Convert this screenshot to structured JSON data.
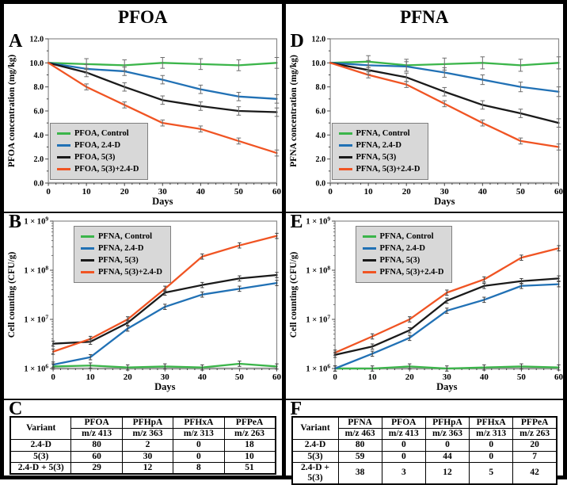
{
  "figure": {
    "left_title": "PFOA",
    "right_title": "PFNA"
  },
  "colors": {
    "green": "#3bb54a",
    "blue": "#2171b5",
    "black": "#1a1a1a",
    "orange": "#f05423",
    "table_blue": "#0070c0",
    "table_red": "#ff0000",
    "legend_bg": "#d8d8d8"
  },
  "chart_data": [
    {
      "id": "A",
      "panel_label": "A",
      "type": "line",
      "scale": "linear",
      "xlabel": "Days",
      "ylabel": "PFOA concentration (mg/kg)",
      "x": [
        0,
        10,
        20,
        30,
        40,
        50,
        60
      ],
      "xticks": [
        "0",
        "10",
        "20",
        "30",
        "40",
        "50",
        "60"
      ],
      "ylim": [
        0,
        12
      ],
      "ytick_labels": [
        "0.0",
        "2.0",
        "4.0",
        "6.0",
        "8.0",
        "10.0",
        "12.0"
      ],
      "legend_position": "bottom-left",
      "series": [
        {
          "name": "PFOA, Control",
          "color_key": "green",
          "values": [
            10.0,
            9.9,
            9.8,
            10.0,
            9.9,
            9.8,
            10.0
          ],
          "err": 0.45
        },
        {
          "name": "PFOA, 2.4-D",
          "color_key": "blue",
          "values": [
            10.0,
            9.5,
            9.3,
            8.6,
            7.8,
            7.2,
            7.0
          ],
          "err": 0.35
        },
        {
          "name": "PFOA, 5(3)",
          "color_key": "black",
          "values": [
            10.0,
            9.2,
            8.0,
            6.9,
            6.4,
            6.0,
            5.9
          ],
          "err": 0.35
        },
        {
          "name": "PFOA, 5(3)+2.4-D",
          "color_key": "orange",
          "values": [
            10.0,
            8.0,
            6.5,
            5.0,
            4.5,
            3.5,
            2.5
          ],
          "err": 0.25
        }
      ]
    },
    {
      "id": "B",
      "panel_label": "B",
      "type": "line",
      "scale": "log",
      "xlabel": "Days",
      "ylabel": "Cell counting (CFU/g)",
      "x": [
        0,
        10,
        20,
        30,
        40,
        50,
        60
      ],
      "xticks": [
        "0",
        "10",
        "20",
        "30",
        "40",
        "50",
        "60"
      ],
      "ylim": [
        1000000,
        1000000000
      ],
      "ytick_labels": [
        "1 × 10⁶",
        "1 × 10⁷",
        "1 × 10⁸",
        "1 × 10⁹"
      ],
      "legend_position": "top-left",
      "series": [
        {
          "name": "PFNA, Control",
          "color_key": "green",
          "values": [
            1100000.0,
            1150000.0,
            1050000.0,
            1100000.0,
            1050000.0,
            1250000.0,
            1100000.0
          ]
        },
        {
          "name": "PFNA, 2.4-D",
          "color_key": "blue",
          "values": [
            1200000.0,
            1700000.0,
            6500000.0,
            18000000.0,
            32000000.0,
            42000000.0,
            55000000.0
          ]
        },
        {
          "name": "PFNA, 5(3)",
          "color_key": "black",
          "values": [
            3200000.0,
            3500000.0,
            8500000.0,
            35000000.0,
            50000000.0,
            68000000.0,
            80000000.0
          ]
        },
        {
          "name": "PFNA, 5(3)+2.4-D",
          "color_key": "orange",
          "values": [
            2200000.0,
            4000000.0,
            10000000.0,
            42000000.0,
            190000000.0,
            320000000.0,
            500000000.0
          ]
        }
      ]
    },
    {
      "id": "C",
      "panel_label": "C",
      "type": "table",
      "variant_header": "Variant",
      "columns": [
        {
          "name": "PFOA",
          "mz": "m/z 413"
        },
        {
          "name": "PFHpA",
          "mz": "m/z 363"
        },
        {
          "name": "PFHxA",
          "mz": "m/z 313"
        },
        {
          "name": "PFPeA",
          "mz": "m/z 263"
        }
      ],
      "rows": [
        {
          "variant": "2.4-D",
          "color_key": "table_blue",
          "values": [
            "80",
            "2",
            "0",
            "18"
          ]
        },
        {
          "variant": "5(3)",
          "color_key": "black",
          "values": [
            "60",
            "30",
            "0",
            "10"
          ]
        },
        {
          "variant": "2.4-D + 5(3)",
          "color_key": "table_red",
          "values": [
            "29",
            "12",
            "8",
            "51"
          ]
        }
      ]
    },
    {
      "id": "D",
      "panel_label": "D",
      "type": "line",
      "scale": "linear",
      "xlabel": "Days",
      "ylabel": "PFNA concentration (mg/kg)",
      "x": [
        0,
        10,
        20,
        30,
        40,
        50,
        60
      ],
      "xticks": [
        "0",
        "10",
        "20",
        "30",
        "40",
        "50",
        "60"
      ],
      "ylim": [
        0,
        12
      ],
      "ytick_labels": [
        "0.0",
        "2.0",
        "4.0",
        "6.0",
        "8.0",
        "10.0",
        "12.0"
      ],
      "legend_position": "bottom-left",
      "series": [
        {
          "name": "PFNA, Control",
          "color_key": "green",
          "values": [
            10.0,
            10.1,
            9.8,
            9.9,
            10.0,
            9.8,
            10.0
          ],
          "err": 0.5
        },
        {
          "name": "PFNA, 2.4-D",
          "color_key": "blue",
          "values": [
            10.0,
            9.8,
            9.7,
            9.2,
            8.6,
            8.0,
            7.6
          ],
          "err": 0.4
        },
        {
          "name": "PFNA, 5(3)",
          "color_key": "black",
          "values": [
            10.0,
            9.4,
            8.8,
            7.6,
            6.5,
            5.8,
            5.0
          ],
          "err": 0.35
        },
        {
          "name": "PFNA, 5(3)+2.4-D",
          "color_key": "orange",
          "values": [
            10.0,
            9.0,
            8.2,
            6.6,
            5.0,
            3.5,
            3.0
          ],
          "err": 0.25
        }
      ]
    },
    {
      "id": "E",
      "panel_label": "E",
      "type": "line",
      "scale": "log",
      "xlabel": "Days",
      "ylabel": "Cell counting (CFU/g)",
      "x": [
        0,
        10,
        20,
        30,
        40,
        50,
        60
      ],
      "xticks": [
        "0",
        "10",
        "20",
        "30",
        "40",
        "50",
        "60"
      ],
      "ylim": [
        1000000,
        1000000000
      ],
      "ytick_labels": [
        "1 × 10⁶",
        "1 × 10⁷",
        "1 × 10⁸",
        "1 × 10⁹"
      ],
      "legend_position": "top-left",
      "series": [
        {
          "name": "PFNA, Control",
          "color_key": "green",
          "values": [
            1000000.0,
            1000000.0,
            1100000.0,
            1000000.0,
            1050000.0,
            1100000.0,
            1050000.0
          ]
        },
        {
          "name": "PFNA, 2.4-D",
          "color_key": "blue",
          "values": [
            1000000.0,
            2000000.0,
            4200000.0,
            15000000.0,
            25000000.0,
            48000000.0,
            52000000.0
          ]
        },
        {
          "name": "PFNA, 5(3)",
          "color_key": "black",
          "values": [
            1900000.0,
            2800000.0,
            6000000.0,
            24000000.0,
            48000000.0,
            60000000.0,
            68000000.0
          ]
        },
        {
          "name": "PFNA, 5(3)+2.4-D",
          "color_key": "orange",
          "values": [
            2100000.0,
            4500000.0,
            10000000.0,
            35000000.0,
            65000000.0,
            180000000.0,
            280000000.0
          ]
        }
      ]
    },
    {
      "id": "F",
      "panel_label": "F",
      "type": "table",
      "variant_header": "Variant",
      "columns": [
        {
          "name": "PFNA",
          "mz": "m/z 463"
        },
        {
          "name": "PFOA",
          "mz": "m/z 413"
        },
        {
          "name": "PFHpA",
          "mz": "m/z 363"
        },
        {
          "name": "PFHxA",
          "mz": "m/z 313"
        },
        {
          "name": "PFPeA",
          "mz": "m/z 263"
        }
      ],
      "rows": [
        {
          "variant": "2.4-D",
          "color_key": "table_blue",
          "values": [
            "80",
            "0",
            "0",
            "0",
            "20"
          ]
        },
        {
          "variant": "5(3)",
          "color_key": "black",
          "values": [
            "59",
            "0",
            "44",
            "0",
            "7"
          ]
        },
        {
          "variant": "2.4-D + 5(3)",
          "color_key": "table_red",
          "values": [
            "38",
            "3",
            "12",
            "5",
            "42"
          ]
        }
      ]
    }
  ]
}
